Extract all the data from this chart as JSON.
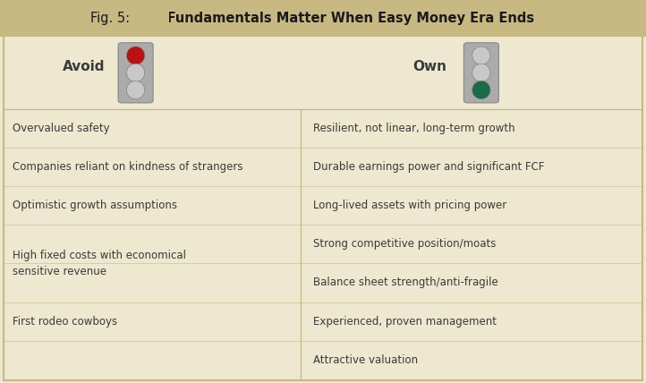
{
  "title_prefix": "Fig. 5:  ",
  "title_bold": "Fundamentals Matter When Easy Money Era Ends",
  "header_bg": "#C8B882",
  "body_bg": "#EDE8CF",
  "border_color": "#C8B882",
  "divider_color": "#C8B882",
  "text_color": "#3A3A3A",
  "left_header": "Avoid",
  "right_header": "Own",
  "avoid_items": [
    "Overvalued safety",
    "Companies reliant on kindness of strangers",
    "Optimistic growth assumptions",
    "High fixed costs with economical\nsensitive revenue",
    "First rodeo cowboys"
  ],
  "own_items": [
    "Resilient, not linear, long-term growth",
    "Durable earnings power and significant FCF",
    "Long-lived assets with pricing power",
    "Strong competitive position/moats",
    "Balance sheet strength/anti-fragile",
    "Experienced, proven management",
    "Attractive valuation"
  ],
  "traffic_light_body": "#ABABAB",
  "traffic_light_border": "#888888",
  "red_light": "#BB1111",
  "green_light": "#1A6B4A",
  "off_light": "#C8C8C8"
}
